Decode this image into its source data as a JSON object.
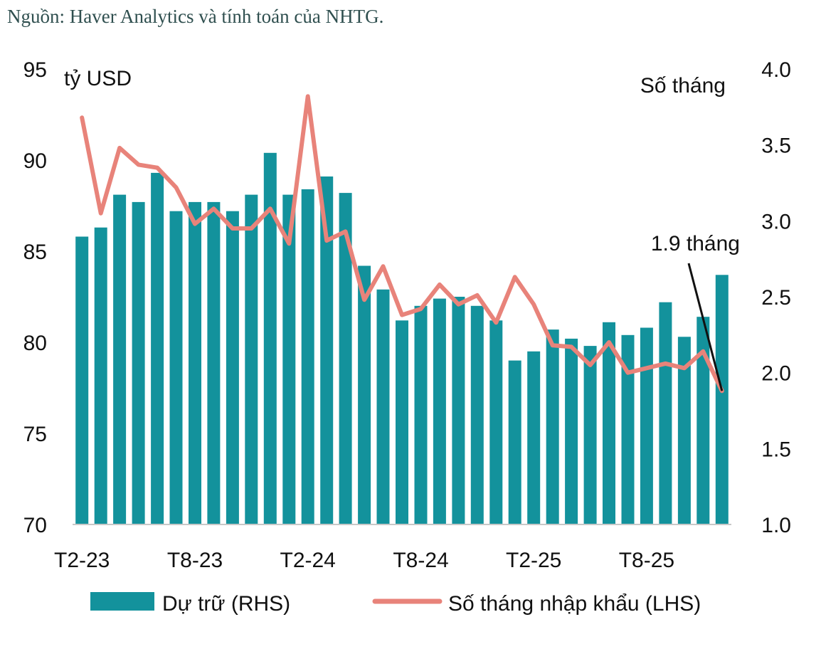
{
  "source": "Nguồn: Haver Analytics và tính toán của NHTG.",
  "chart_data": {
    "type": "bar+line",
    "x": [
      "T2-23",
      "T3-23",
      "T4-23",
      "T5-23",
      "T6-23",
      "T7-23",
      "T8-23",
      "T9-23",
      "T10-23",
      "T11-23",
      "T12-23",
      "T1-24",
      "T2-24",
      "T3-24",
      "T4-24",
      "T5-24",
      "T6-24",
      "T7-24",
      "T8-24",
      "T9-24",
      "T10-24",
      "T11-24",
      "T12-24",
      "T1-25",
      "T2-25",
      "T3-25",
      "T4-25",
      "T5-25",
      "T6-25",
      "T7-25",
      "T8-25",
      "T9-25",
      "T10-25",
      "T11-25",
      "T12-25"
    ],
    "xtick_labels": [
      "T2-23",
      "T8-23",
      "T2-24",
      "T8-24",
      "T2-25",
      "T8-25"
    ],
    "series": [
      {
        "name": "Dự trữ (RHS)",
        "kind": "bar",
        "axis": "left",
        "color": "#13929c",
        "values": [
          85.8,
          86.3,
          88.1,
          87.7,
          89.3,
          87.2,
          87.7,
          87.7,
          87.2,
          88.1,
          90.4,
          88.1,
          88.4,
          89.1,
          88.2,
          84.2,
          82.9,
          81.2,
          82.0,
          82.4,
          82.5,
          82.0,
          81.2,
          79.0,
          79.5,
          80.7,
          80.2,
          79.8,
          81.1,
          80.4,
          80.8,
          82.2,
          80.3,
          81.4,
          83.7
        ]
      },
      {
        "name": "Số tháng nhập khẩu (LHS)",
        "kind": "line",
        "axis": "right",
        "color": "#e8837a",
        "values": [
          3.68,
          3.05,
          3.48,
          3.37,
          3.35,
          3.22,
          2.98,
          3.08,
          2.95,
          2.95,
          3.08,
          2.85,
          3.82,
          2.87,
          2.93,
          2.48,
          2.7,
          2.38,
          2.42,
          2.58,
          2.45,
          2.51,
          2.33,
          2.63,
          2.45,
          2.18,
          2.17,
          2.05,
          2.2,
          2.0,
          2.03,
          2.06,
          2.03,
          2.14,
          1.88
        ]
      }
    ],
    "y_left": {
      "label": "tỷ USD",
      "range": [
        70,
        95
      ],
      "ticks": [
        "95",
        "90",
        "85",
        "80",
        "75",
        "70"
      ]
    },
    "y_right": {
      "label": "Số tháng",
      "range": [
        1.0,
        4.0
      ],
      "ticks": [
        "4.0",
        "3.5",
        "3.0",
        "2.5",
        "2.0",
        "1.5",
        "1.0"
      ]
    },
    "annotation": {
      "text": "1.9 tháng",
      "index": 34
    },
    "legend": {
      "position": "bottom"
    },
    "grid": false
  }
}
